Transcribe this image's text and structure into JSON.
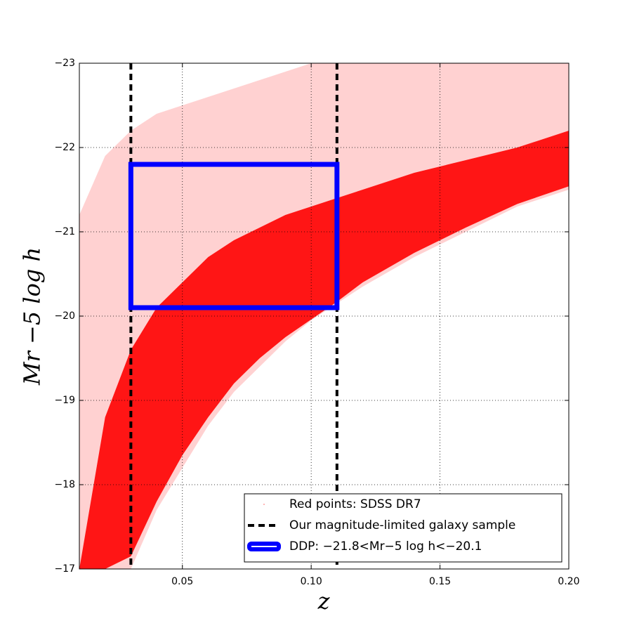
{
  "chart_data": {
    "type": "scatter",
    "xlabel": "z",
    "ylabel": "Mr −5 log h",
    "xlim": [
      0.01,
      0.2
    ],
    "ylim": [
      -17,
      -23
    ],
    "xticks": [
      0.05,
      {
        "value": 0.1,
        "label": "0.10"
      },
      0.15,
      {
        "value": 0.2,
        "label": "0.20"
      }
    ],
    "yticks": [
      {
        "value": -23,
        "label": "−23"
      },
      {
        "value": -22,
        "label": "−22"
      },
      {
        "value": -21,
        "label": "−21"
      },
      {
        "value": -20,
        "label": "−20"
      },
      {
        "value": -19,
        "label": "−19"
      },
      {
        "value": -18,
        "label": "−18"
      },
      {
        "value": -17,
        "label": "−17"
      }
    ],
    "grid": true,
    "legend": "lower right",
    "series": [
      {
        "name": "Red points: SDSS DR7",
        "color": "#ff0000",
        "x": [
          0.01,
          0.02,
          0.03,
          0.04,
          0.05,
          0.06,
          0.07,
          0.08,
          0.09,
          0.1,
          0.11,
          0.12,
          0.14,
          0.16,
          0.18,
          0.2
        ],
        "outer_upper": [
          -21.2,
          -21.9,
          -22.2,
          -22.4,
          -22.5,
          -22.6,
          -22.7,
          -22.8,
          -22.9,
          -23,
          -23,
          -23,
          -23,
          -23,
          -23,
          -23
        ],
        "outer_lower": [
          -17,
          -17,
          -17,
          -17.7,
          -18.2,
          -18.7,
          -19.1,
          -19.4,
          -19.7,
          -19.95,
          -20.15,
          -20.35,
          -20.7,
          -21,
          -21.3,
          -21.5
        ],
        "core_upper": [
          -17,
          -18.8,
          -19.6,
          -20.1,
          -20.4,
          -20.7,
          -20.9,
          -21.05,
          -21.2,
          -21.3,
          -21.4,
          -21.5,
          -21.7,
          -21.85,
          -22,
          -22.2
        ],
        "core_lower": [
          -17,
          -17,
          -17.15,
          -17.8,
          -18.35,
          -18.8,
          -19.2,
          -19.5,
          -19.75,
          -19.96,
          -20.17,
          -20.4,
          -20.75,
          -21.05,
          -21.33,
          -21.54
        ]
      },
      {
        "name": "Our magnitude-limited galaxy sample",
        "color": "#000000",
        "x": [
          0.03,
          0.11
        ]
      },
      {
        "name": "DDP: −21.8<Mr−5 log h<−20.1",
        "color": "#0000ff",
        "x": [
          0.03,
          0.11
        ],
        "values": [
          -21.8,
          -20.1
        ]
      }
    ]
  }
}
